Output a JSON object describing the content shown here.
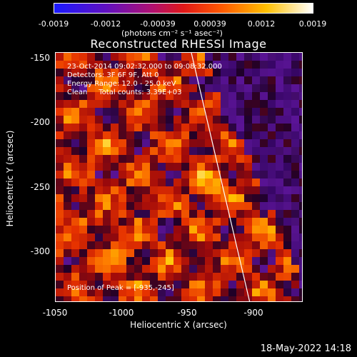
{
  "colorbar": {
    "ticks": [
      "-0.0019",
      "-0.0012",
      "-0.00039",
      "0.00039",
      "0.0012",
      "0.0019"
    ],
    "unit_label": "(photons cm⁻² s⁻¹ asec⁻²)",
    "range": [
      -0.0019,
      0.0019
    ],
    "colors": [
      "#1010ff",
      "#7a00b0",
      "#e01020",
      "#ff5a00",
      "#ffc000",
      "#ffffff"
    ]
  },
  "title": "Reconstructed RHESSI Image",
  "info": {
    "time": "23-Oct-2014 09:02:32.000 to 09:08:32.000",
    "detectors": "Detectors: 3F 6F 9F, Att 0",
    "energy": "Energy Range: 12.0 - 25.0 keV",
    "clean": "Clean     Total counts: 3.39E+03"
  },
  "peak_text": "Position of Peak = [-935,-245]",
  "axes": {
    "xlabel": "Heliocentric X (arcsec)",
    "ylabel": "Heliocentric Y (arcsec)",
    "xticks": [
      "-1050",
      "-1000",
      "-950",
      "-900"
    ],
    "yticks": [
      "-150",
      "-200",
      "-250",
      "-300"
    ],
    "xlim": [
      -1050,
      -870
    ],
    "ylim": [
      -337,
      -145
    ]
  },
  "footer_date": "18-May-2022 14:18"
}
